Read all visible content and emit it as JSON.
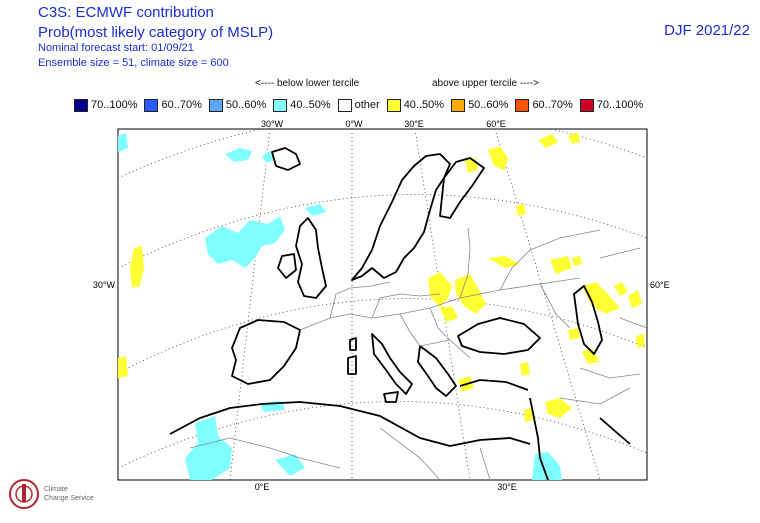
{
  "header": {
    "title": "C3S: ECMWF contribution",
    "subtitle": "Prob(most likely category of MSLP)",
    "info_start": "Nominal forecast start: 01/09/21",
    "info_ensemble": "Ensemble size = 51, climate size = 600",
    "season": "DJF 2021/22"
  },
  "legend": {
    "note_below": "<---- below lower tercile",
    "note_above": "above upper tercile ---->",
    "items": [
      {
        "label": "70..100%",
        "color": "#00008b"
      },
      {
        "label": "60..70%",
        "color": "#2a5cff"
      },
      {
        "label": "50..60%",
        "color": "#5fa8ff"
      },
      {
        "label": "40..50%",
        "color": "#7fffff"
      },
      {
        "label": "other",
        "color": "#ffffff"
      },
      {
        "label": "40..50%",
        "color": "#ffff33"
      },
      {
        "label": "50..60%",
        "color": "#ffaa00"
      },
      {
        "label": "60..70%",
        "color": "#ff5500"
      },
      {
        "label": "70..100%",
        "color": "#cc0022"
      }
    ]
  },
  "map": {
    "projection": "Lambert conic, Europe",
    "top_lon_labels": [
      "30°W",
      "0°W",
      "30°E",
      "60°E"
    ],
    "bottom_lon_labels": [
      "0°E",
      "30°E"
    ],
    "left_lat_label": "30°W",
    "right_lat_label": "60°E",
    "regions": [
      {
        "name": "below-tercile-40-50",
        "category": "below 40..50%",
        "color": "#7fffff"
      },
      {
        "name": "above-tercile-40-50",
        "category": "above 40..50%",
        "color": "#ffff33"
      }
    ]
  },
  "logo": {
    "line1": "Climate",
    "line2": "Change Service"
  }
}
